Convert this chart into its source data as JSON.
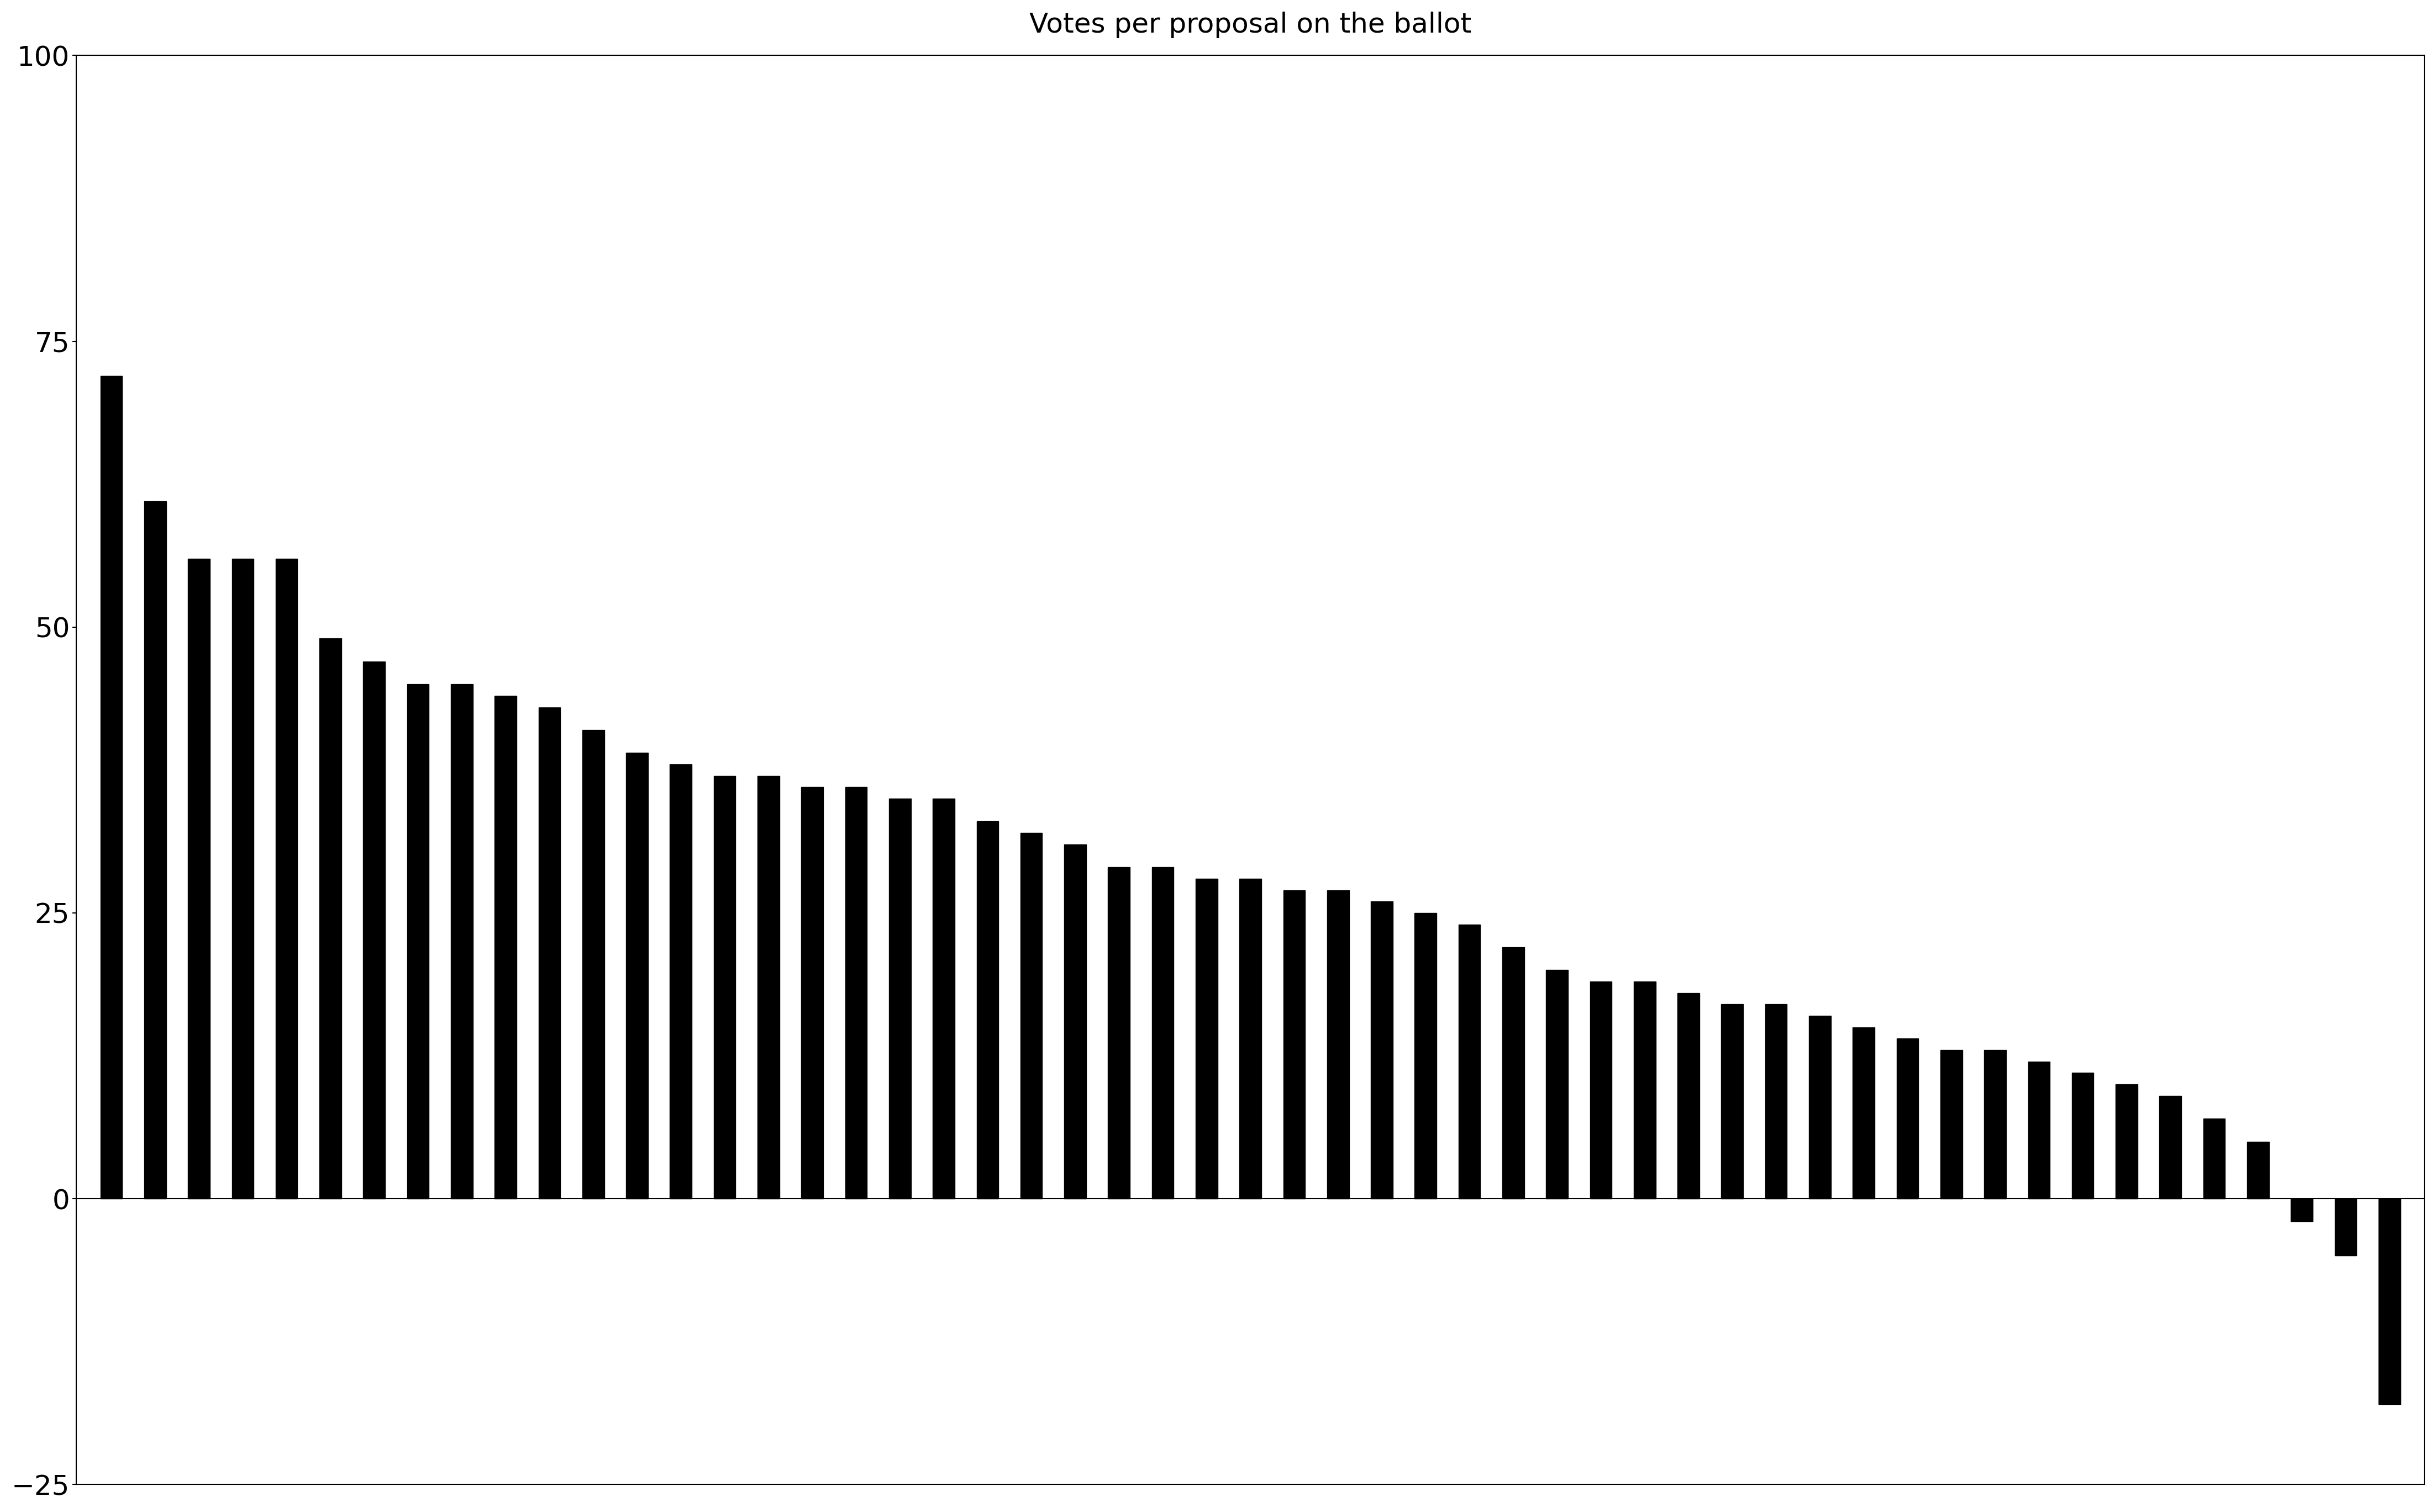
{
  "title": "Votes per proposal on the ballot",
  "values": [
    72,
    61,
    56,
    56,
    56,
    49,
    47,
    45,
    45,
    44,
    43,
    41,
    39,
    38,
    37,
    37,
    36,
    36,
    35,
    35,
    33,
    32,
    31,
    29,
    29,
    28,
    28,
    27,
    27,
    26,
    25,
    24,
    22,
    20,
    19,
    19,
    18,
    17,
    17,
    16,
    15,
    14,
    13,
    13,
    12,
    11,
    10,
    9,
    7,
    5,
    -2,
    -5,
    -18
  ],
  "bar_color": "#000000",
  "background_color": "#ffffff",
  "ylim": [
    -25,
    100
  ],
  "yticks": [
    -25,
    0,
    25,
    50,
    75,
    100
  ],
  "title_fontsize": 36,
  "tick_fontsize": 36,
  "bar_width": 0.5
}
